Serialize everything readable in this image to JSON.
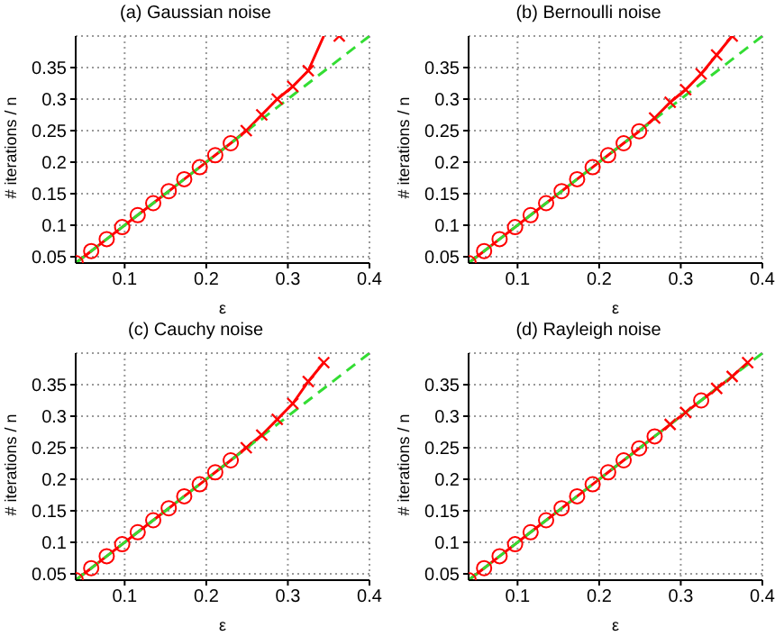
{
  "chart_data": [
    {
      "type": "line",
      "title": "(a) Gaussian noise",
      "xlabel": "ε",
      "ylabel": "# iterations / n",
      "xlim": [
        0.04,
        0.4
      ],
      "ylim": [
        0.04,
        0.4
      ],
      "xticks": [
        0.1,
        0.2,
        0.3,
        0.4
      ],
      "yticks": [
        0.05,
        0.1,
        0.15,
        0.2,
        0.25,
        0.3,
        0.35
      ],
      "grid": true,
      "x": [
        0.04,
        0.059,
        0.078,
        0.097,
        0.116,
        0.135,
        0.154,
        0.173,
        0.192,
        0.211,
        0.23,
        0.249,
        0.268,
        0.287,
        0.306,
        0.325,
        0.344,
        0.363,
        0.382,
        0.4
      ],
      "series": [
        {
          "type": "line",
          "color": "#ff0000",
          "marker": "none",
          "line_style": "solid",
          "values": [
            0.04,
            0.059,
            0.078,
            0.097,
            0.116,
            0.135,
            0.154,
            0.173,
            0.192,
            0.211,
            0.23,
            0.25,
            0.275,
            0.3,
            0.32,
            0.345,
            0.4,
            null,
            null,
            null
          ]
        },
        {
          "type": "scatter",
          "color": "#ff0000",
          "marker": "circle",
          "values": [
            0.04,
            0.059,
            0.078,
            0.097,
            0.116,
            0.135,
            0.154,
            0.173,
            0.192,
            0.211,
            0.23,
            null,
            null,
            null,
            null,
            null,
            null,
            null,
            null,
            null
          ]
        },
        {
          "type": "scatter",
          "color": "#ff0000",
          "marker": "cross",
          "values": [
            null,
            null,
            null,
            null,
            null,
            null,
            null,
            null,
            null,
            null,
            null,
            0.25,
            0.275,
            0.3,
            0.32,
            0.345,
            null,
            0.4,
            null,
            null
          ]
        },
        {
          "type": "line",
          "color": "#33dd33",
          "marker": "none",
          "line_style": "dashed",
          "values": [
            0.04,
            0.059,
            0.078,
            0.097,
            0.116,
            0.135,
            0.154,
            0.173,
            0.192,
            0.211,
            0.23,
            0.249,
            0.268,
            0.287,
            0.306,
            0.325,
            0.344,
            0.363,
            0.382,
            0.4
          ]
        }
      ]
    },
    {
      "type": "line",
      "title": "(b) Bernoulli noise",
      "xlabel": "ε",
      "ylabel": "# iterations / n",
      "xlim": [
        0.04,
        0.4
      ],
      "ylim": [
        0.04,
        0.4
      ],
      "xticks": [
        0.1,
        0.2,
        0.3,
        0.4
      ],
      "yticks": [
        0.05,
        0.1,
        0.15,
        0.2,
        0.25,
        0.3,
        0.35
      ],
      "grid": true,
      "x": [
        0.04,
        0.059,
        0.078,
        0.097,
        0.116,
        0.135,
        0.154,
        0.173,
        0.192,
        0.211,
        0.23,
        0.249,
        0.268,
        0.287,
        0.306,
        0.325,
        0.344,
        0.363,
        0.382,
        0.4
      ],
      "series": [
        {
          "type": "line",
          "color": "#ff0000",
          "marker": "none",
          "line_style": "solid",
          "values": [
            0.04,
            0.059,
            0.078,
            0.097,
            0.116,
            0.135,
            0.154,
            0.173,
            0.192,
            0.211,
            0.23,
            0.249,
            0.27,
            0.295,
            0.315,
            0.34,
            0.37,
            0.4,
            null,
            null
          ]
        },
        {
          "type": "scatter",
          "color": "#ff0000",
          "marker": "circle",
          "values": [
            0.04,
            0.059,
            0.078,
            0.097,
            0.116,
            0.135,
            0.154,
            0.173,
            0.192,
            0.211,
            0.23,
            0.249,
            null,
            null,
            null,
            null,
            null,
            null,
            null,
            null
          ]
        },
        {
          "type": "scatter",
          "color": "#ff0000",
          "marker": "cross",
          "values": [
            null,
            null,
            null,
            null,
            null,
            null,
            null,
            null,
            null,
            null,
            null,
            null,
            0.27,
            0.295,
            0.315,
            0.34,
            0.37,
            0.4,
            null,
            null
          ]
        },
        {
          "type": "line",
          "color": "#33dd33",
          "marker": "none",
          "line_style": "dashed",
          "values": [
            0.04,
            0.059,
            0.078,
            0.097,
            0.116,
            0.135,
            0.154,
            0.173,
            0.192,
            0.211,
            0.23,
            0.249,
            0.268,
            0.287,
            0.306,
            0.325,
            0.344,
            0.363,
            0.382,
            0.4
          ]
        }
      ]
    },
    {
      "type": "line",
      "title": "(c) Cauchy noise",
      "xlabel": "ε",
      "ylabel": "# iterations / n",
      "xlim": [
        0.04,
        0.4
      ],
      "ylim": [
        0.04,
        0.4
      ],
      "xticks": [
        0.1,
        0.2,
        0.3,
        0.4
      ],
      "yticks": [
        0.05,
        0.1,
        0.15,
        0.2,
        0.25,
        0.3,
        0.35
      ],
      "grid": true,
      "x": [
        0.04,
        0.059,
        0.078,
        0.097,
        0.116,
        0.135,
        0.154,
        0.173,
        0.192,
        0.211,
        0.23,
        0.249,
        0.268,
        0.287,
        0.306,
        0.325,
        0.344,
        0.363,
        0.382,
        0.4
      ],
      "series": [
        {
          "type": "line",
          "color": "#ff0000",
          "marker": "none",
          "line_style": "solid",
          "values": [
            0.04,
            0.059,
            0.078,
            0.097,
            0.116,
            0.135,
            0.154,
            0.173,
            0.192,
            0.211,
            0.23,
            0.25,
            0.27,
            0.295,
            0.32,
            0.355,
            0.385,
            null,
            null,
            null
          ]
        },
        {
          "type": "scatter",
          "color": "#ff0000",
          "marker": "circle",
          "values": [
            0.04,
            0.059,
            0.078,
            0.097,
            0.116,
            0.135,
            0.154,
            0.173,
            0.192,
            0.211,
            0.23,
            null,
            null,
            null,
            null,
            null,
            null,
            null,
            null,
            null
          ]
        },
        {
          "type": "scatter",
          "color": "#ff0000",
          "marker": "cross",
          "values": [
            null,
            null,
            null,
            null,
            null,
            null,
            null,
            null,
            null,
            null,
            null,
            0.25,
            0.27,
            0.295,
            0.32,
            0.355,
            0.385,
            null,
            null,
            null
          ]
        },
        {
          "type": "line",
          "color": "#33dd33",
          "marker": "none",
          "line_style": "dashed",
          "values": [
            0.04,
            0.059,
            0.078,
            0.097,
            0.116,
            0.135,
            0.154,
            0.173,
            0.192,
            0.211,
            0.23,
            0.249,
            0.268,
            0.287,
            0.306,
            0.325,
            0.344,
            0.363,
            0.382,
            0.4
          ]
        }
      ]
    },
    {
      "type": "line",
      "title": "(d) Rayleigh noise",
      "xlabel": "ε",
      "ylabel": "# iterations / n",
      "xlim": [
        0.04,
        0.4
      ],
      "ylim": [
        0.04,
        0.4
      ],
      "xticks": [
        0.1,
        0.2,
        0.3,
        0.4
      ],
      "yticks": [
        0.05,
        0.1,
        0.15,
        0.2,
        0.25,
        0.3,
        0.35
      ],
      "grid": true,
      "x": [
        0.04,
        0.059,
        0.078,
        0.097,
        0.116,
        0.135,
        0.154,
        0.173,
        0.192,
        0.211,
        0.23,
        0.249,
        0.268,
        0.287,
        0.306,
        0.325,
        0.344,
        0.363,
        0.382,
        0.4
      ],
      "series": [
        {
          "type": "line",
          "color": "#ff0000",
          "marker": "none",
          "line_style": "solid",
          "values": [
            0.04,
            0.059,
            0.078,
            0.097,
            0.116,
            0.135,
            0.154,
            0.173,
            0.192,
            0.211,
            0.23,
            0.249,
            0.268,
            0.287,
            0.306,
            0.325,
            0.344,
            0.363,
            0.385,
            null
          ]
        },
        {
          "type": "scatter",
          "color": "#ff0000",
          "marker": "circle",
          "values": [
            0.04,
            0.059,
            0.078,
            0.097,
            0.116,
            0.135,
            0.154,
            0.173,
            0.192,
            0.211,
            0.23,
            0.249,
            0.268,
            null,
            null,
            0.325,
            null,
            null,
            null,
            null
          ]
        },
        {
          "type": "scatter",
          "color": "#ff0000",
          "marker": "cross",
          "values": [
            null,
            null,
            null,
            null,
            null,
            null,
            null,
            null,
            null,
            null,
            null,
            null,
            null,
            0.287,
            0.306,
            null,
            0.344,
            0.363,
            0.385,
            null
          ]
        },
        {
          "type": "line",
          "color": "#33dd33",
          "marker": "none",
          "line_style": "dashed",
          "values": [
            0.04,
            0.059,
            0.078,
            0.097,
            0.116,
            0.135,
            0.154,
            0.173,
            0.192,
            0.211,
            0.23,
            0.249,
            0.268,
            0.287,
            0.306,
            0.325,
            0.344,
            0.363,
            0.382,
            0.4
          ]
        }
      ]
    }
  ]
}
